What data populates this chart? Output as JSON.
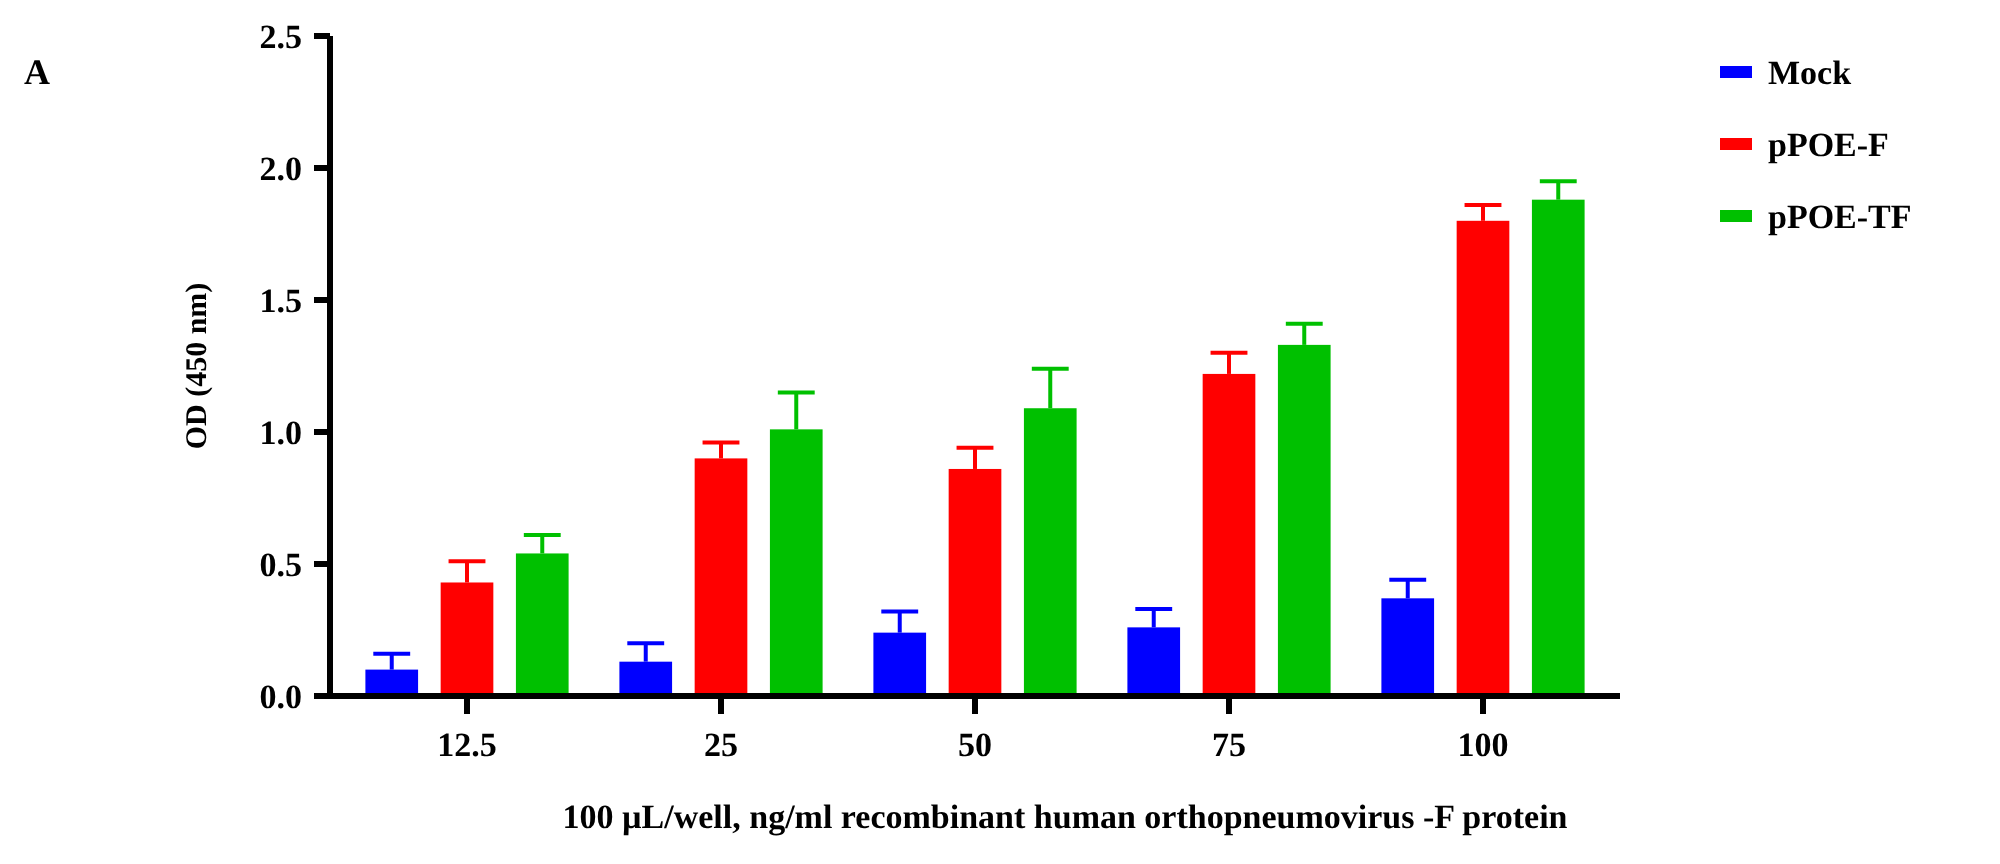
{
  "chart_data": {
    "type": "bar",
    "xlabel": "100 µL/well, ng/ml recombinant human orthopneumovirus -F protein",
    "ylabel": "OD (450 nm)",
    "annotations": [
      "A"
    ],
    "categories": [
      "12.5",
      "25",
      "50",
      "75",
      "100"
    ],
    "series": [
      {
        "name": "Mock",
        "color": "#0000ff",
        "values": [
          0.1,
          0.13,
          0.24,
          0.26,
          0.37
        ],
        "errors": [
          [
            0.1,
            0.16
          ],
          [
            0.13,
            0.2
          ],
          [
            0.24,
            0.32
          ],
          [
            0.26,
            0.33
          ],
          [
            0.37,
            0.44
          ]
        ]
      },
      {
        "name": "pPOE-F",
        "color": "#ff0000",
        "values": [
          0.43,
          0.9,
          0.86,
          1.22,
          1.8
        ],
        "errors": [
          [
            0.43,
            0.51
          ],
          [
            0.9,
            0.96
          ],
          [
            0.86,
            0.94
          ],
          [
            1.22,
            1.3
          ],
          [
            1.8,
            1.86
          ]
        ]
      },
      {
        "name": "pPOE-TF",
        "color": "#00c000",
        "values": [
          0.54,
          1.01,
          1.09,
          1.33,
          1.88
        ],
        "errors": [
          [
            0.54,
            0.61
          ],
          [
            1.01,
            1.15
          ],
          [
            1.09,
            1.24
          ],
          [
            1.33,
            1.41
          ],
          [
            1.88,
            1.95
          ]
        ]
      }
    ],
    "ylim": [
      0,
      2.5
    ],
    "yticks": [
      {
        "value": 0,
        "label": "0.0"
      },
      {
        "value": 0.5,
        "label": "0.5"
      },
      {
        "value": 1,
        "label": "1.0"
      },
      {
        "value": 1.5,
        "label": "1.5"
      },
      {
        "value": 2,
        "label": "2.0"
      },
      {
        "value": 2.5,
        "label": "2.5"
      }
    ],
    "grid": false,
    "legend": "top right"
  }
}
